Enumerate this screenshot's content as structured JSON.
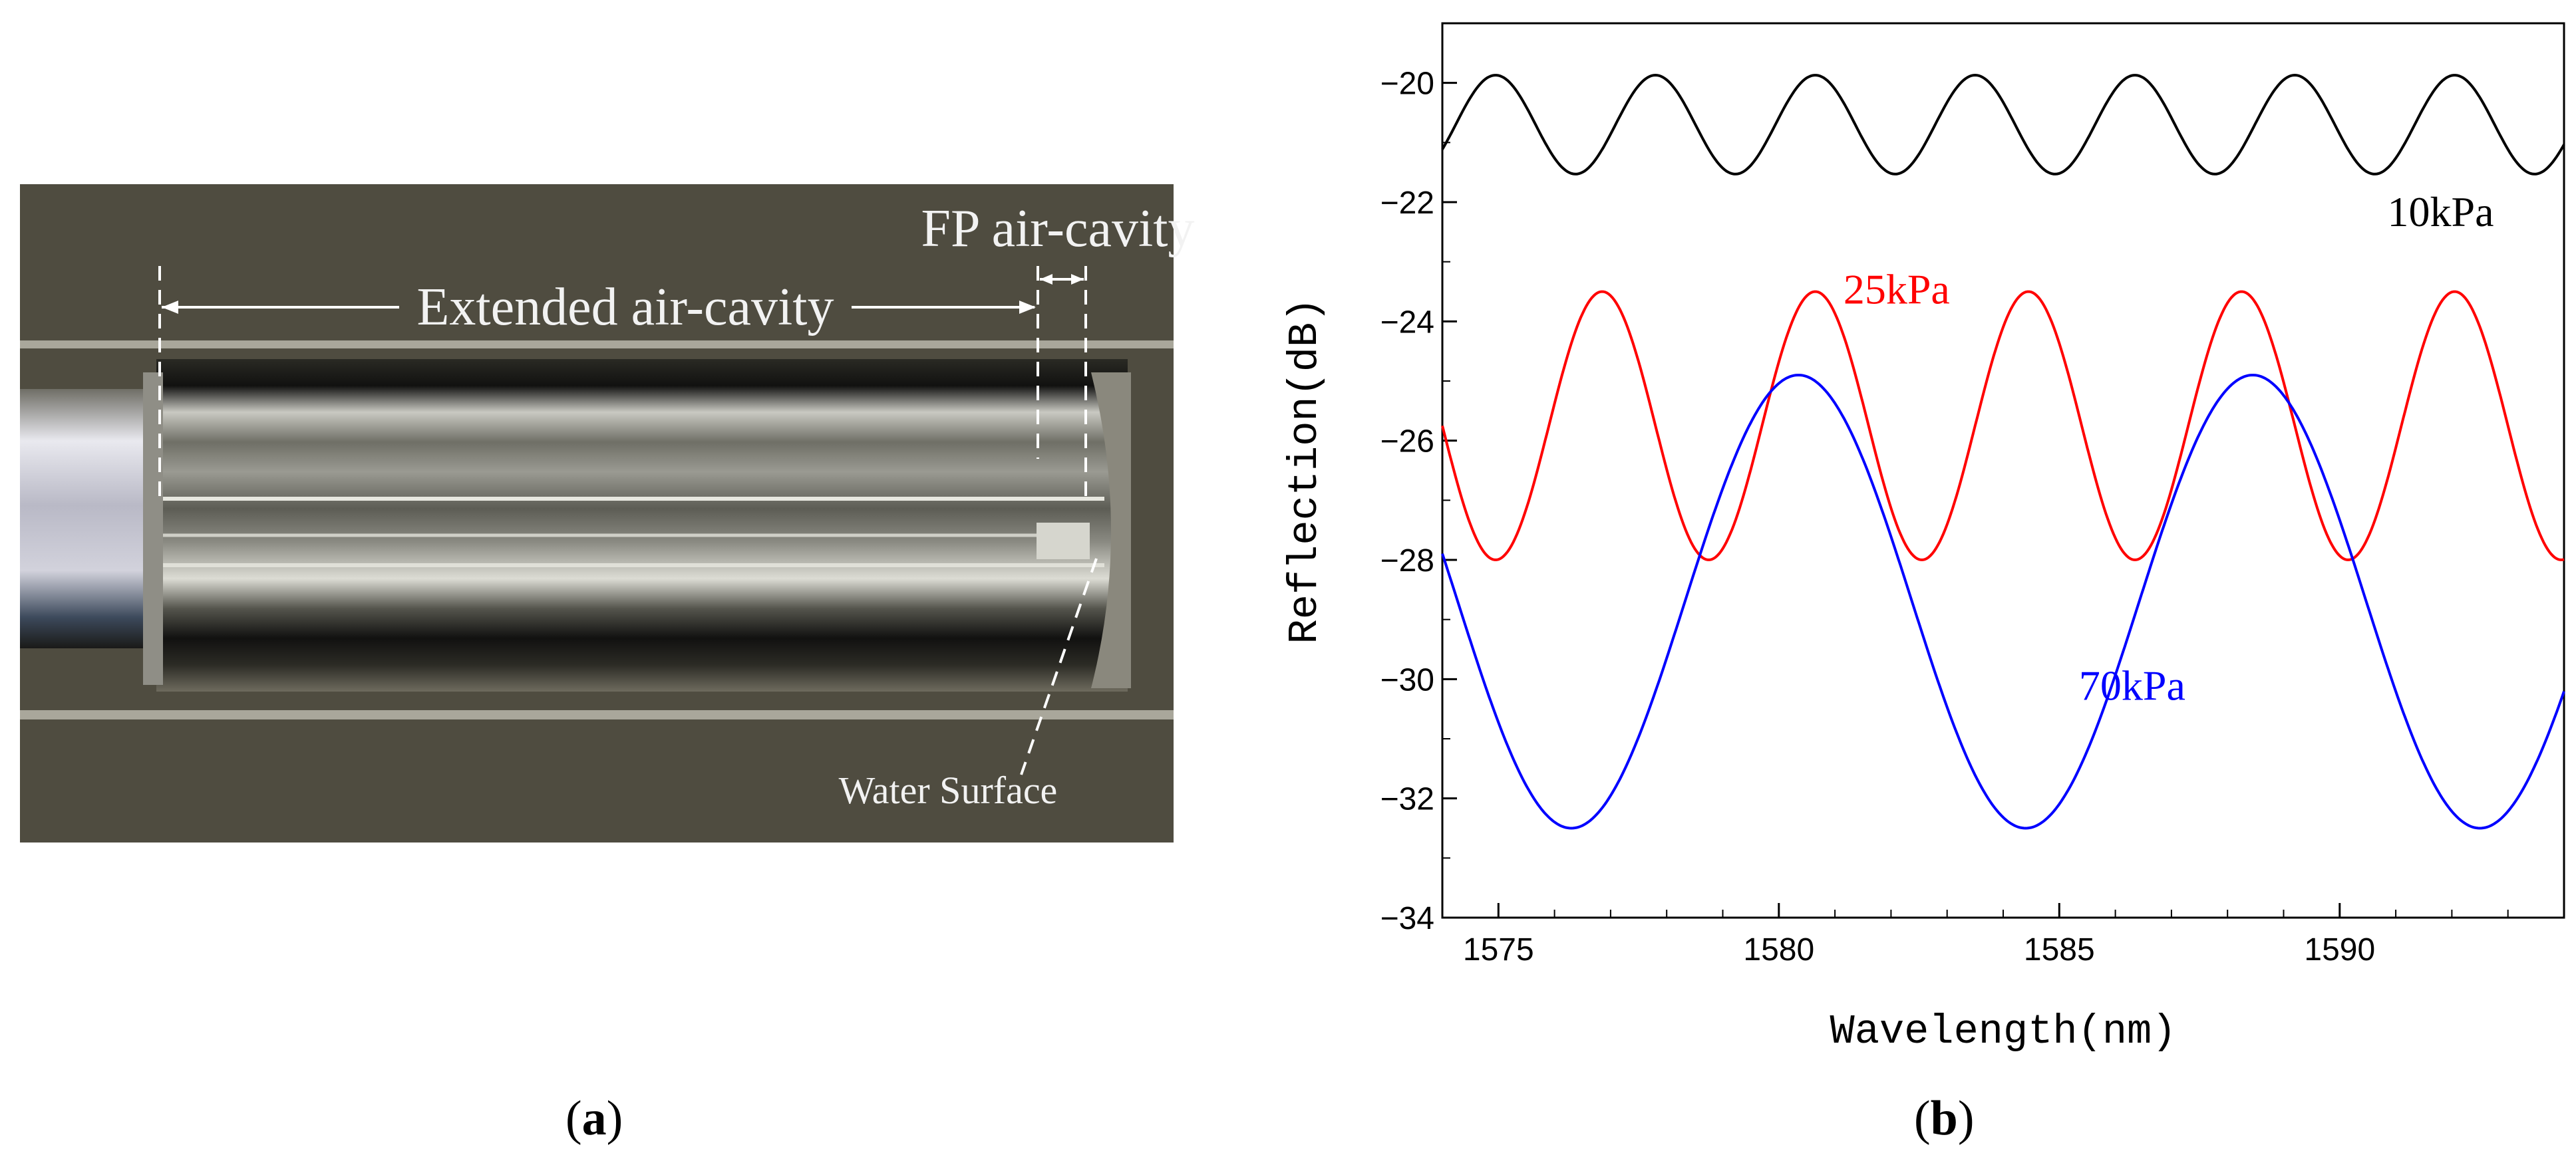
{
  "photo": {
    "label_fp": "FP air-cavity",
    "label_extended": "Extended air-cavity",
    "label_water": "Water Surface",
    "caption": "a"
  },
  "plot": {
    "caption": "b"
  },
  "chart_data": {
    "type": "line",
    "title": "",
    "xlabel": "Wavelength(nm)",
    "ylabel": "Reflection(dB)",
    "xlim": [
      1574,
      1594
    ],
    "ylim": [
      -34,
      -19
    ],
    "xticks": [
      1575,
      1580,
      1585,
      1590
    ],
    "yticks": [
      -20,
      -22,
      -24,
      -26,
      -28,
      -30,
      -32,
      -34
    ],
    "grid": false,
    "series": [
      {
        "name": "10kPa",
        "color": "#000000",
        "center": -20.7,
        "amplitude": 0.83,
        "period": 2.85,
        "peak": 1574.95
      },
      {
        "name": "25kPa",
        "color": "#ff0000",
        "center": -25.75,
        "amplitude": 2.25,
        "period": 3.8,
        "peak": 1576.85
      },
      {
        "name": "70kPa",
        "color": "#0000ff",
        "center": -28.7,
        "amplitude": 3.8,
        "period": 8.1,
        "peak": 1580.35
      }
    ]
  }
}
